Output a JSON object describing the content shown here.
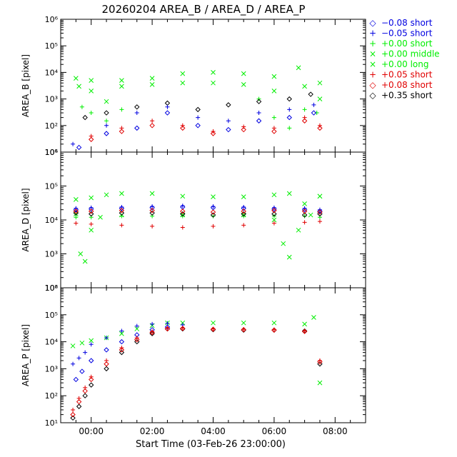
{
  "title": "20260204 AREA_B / AREA_D / AREA_P",
  "colors": {
    "blue": "#0000e0",
    "green": "#00ee00",
    "red": "#e00000",
    "black": "#000000",
    "background": "#ffffff"
  },
  "legend": [
    {
      "symbol": "◇",
      "label": "−0.08 short",
      "color": "#0000e0"
    },
    {
      "symbol": "+",
      "label": "−0.05 short",
      "color": "#0000e0"
    },
    {
      "symbol": "+",
      "label": "+0.00 short",
      "color": "#00ee00"
    },
    {
      "symbol": "×",
      "label": "+0.00 middle",
      "color": "#00ee00"
    },
    {
      "symbol": "×",
      "label": "+0.00 long",
      "color": "#00ee00"
    },
    {
      "symbol": "+",
      "label": "+0.05 short",
      "color": "#e00000"
    },
    {
      "symbol": "◇",
      "label": "+0.08 short",
      "color": "#e00000"
    },
    {
      "symbol": "◇",
      "label": "+0.35 short",
      "color": "#000000"
    }
  ],
  "chart_data": [
    {
      "type": "scatter",
      "panel": "top",
      "ylabel": "AREA_B [pixel]",
      "yscale": "log",
      "ylim": [
        10,
        1000000
      ],
      "y_tick_labels": [
        "10¹",
        "10²",
        "10³",
        "10⁴",
        "10⁵",
        "10⁶"
      ],
      "x_tick_labels": [
        "00:00",
        "02:00",
        "04:00",
        "06:00",
        "08:00"
      ],
      "series": [
        {
          "name": "+0.00 long",
          "color": "#00ee00",
          "marker": "x",
          "x": [
            -0.5,
            0,
            1,
            2,
            3,
            4,
            5,
            6,
            6.8,
            7.5
          ],
          "y": [
            6000,
            5000,
            5000,
            6000,
            9000,
            10000,
            9000,
            7000,
            15000,
            4000
          ]
        },
        {
          "name": "+0.00 middle",
          "color": "#00ee00",
          "marker": "x",
          "x": [
            -0.4,
            0,
            0.5,
            1,
            2,
            3,
            4,
            5,
            6,
            7,
            7.5
          ],
          "y": [
            3000,
            2000,
            800,
            3000,
            3500,
            4000,
            4000,
            3500,
            2000,
            3000,
            1000
          ]
        },
        {
          "name": "+0.00 short",
          "color": "#00ee00",
          "marker": "+",
          "x": [
            -0.3,
            0,
            0.5,
            1,
            5.5,
            6,
            6.5,
            7,
            7.4
          ],
          "y": [
            500,
            300,
            150,
            400,
            1000,
            200,
            80,
            400,
            300
          ]
        },
        {
          "name": "+0.35 short",
          "color": "#000000",
          "marker": "diamond",
          "x": [
            -0.2,
            0.5,
            1.5,
            2.5,
            3.5,
            4.5,
            5.5,
            6.5,
            7.2
          ],
          "y": [
            200,
            300,
            500,
            700,
            400,
            600,
            800,
            1000,
            1500
          ]
        },
        {
          "name": "-0.05 short",
          "color": "#0000e0",
          "marker": "+",
          "x": [
            -0.6,
            0.5,
            1.5,
            2.5,
            3.5,
            4.5,
            5.5,
            6.5,
            7.3
          ],
          "y": [
            20,
            100,
            300,
            500,
            200,
            150,
            300,
            400,
            600
          ]
        },
        {
          "name": "-0.08 short",
          "color": "#0000e0",
          "marker": "diamond",
          "x": [
            -0.4,
            0.5,
            1.5,
            2.5,
            3.5,
            4.5,
            5.5,
            6.5,
            7.3
          ],
          "y": [
            15,
            50,
            80,
            300,
            100,
            70,
            150,
            200,
            300
          ]
        },
        {
          "name": "+0.05 short",
          "color": "#e00000",
          "marker": "+",
          "x": [
            0,
            1,
            2,
            3,
            4,
            5,
            6,
            7,
            7.5
          ],
          "y": [
            40,
            80,
            150,
            100,
            60,
            90,
            80,
            200,
            100
          ]
        },
        {
          "name": "+0.08 short",
          "color": "#e00000",
          "marker": "diamond",
          "x": [
            0,
            1,
            2,
            3,
            4,
            5,
            6,
            7,
            7.5
          ],
          "y": [
            30,
            60,
            100,
            80,
            50,
            70,
            60,
            150,
            80
          ]
        }
      ]
    },
    {
      "type": "scatter",
      "panel": "middle",
      "ylabel": "AREA_D [pixel]",
      "yscale": "log",
      "ylim": [
        100,
        1000000
      ],
      "y_tick_labels": [
        "10²",
        "10³",
        "10⁴",
        "10⁵",
        "10⁶"
      ],
      "x_tick_labels": [
        "00:00",
        "02:00",
        "04:00",
        "06:00",
        "08:00"
      ],
      "series": [
        {
          "name": "+0.00 long",
          "color": "#00ee00",
          "marker": "x",
          "x": [
            -0.5,
            0,
            0.5,
            1,
            2,
            3,
            4,
            5,
            6,
            6.5,
            7,
            7.5
          ],
          "y": [
            40000,
            45000,
            55000,
            60000,
            60000,
            50000,
            48000,
            48000,
            55000,
            60000,
            30000,
            50000
          ]
        },
        {
          "name": "+0.00 middle",
          "color": "#00ee00",
          "marker": "x",
          "x": [
            -0.5,
            -0.35,
            -0.2,
            0,
            0.3,
            1,
            3,
            5,
            6,
            6.3,
            6.5,
            6.8,
            7.2,
            7.5
          ],
          "y": [
            15000,
            1000,
            600,
            5000,
            12000,
            14000,
            14000,
            14000,
            10000,
            2000,
            800,
            5000,
            14000,
            50000
          ]
        },
        {
          "name": "+0.00 short",
          "color": "#00ee00",
          "marker": "+",
          "x": [
            -0.5,
            0,
            1,
            2,
            3,
            4,
            5,
            6,
            7,
            7.5
          ],
          "y": [
            12000,
            12000,
            13000,
            13000,
            13000,
            13000,
            13000,
            13000,
            13000,
            12000
          ]
        },
        {
          "name": "+0.35 short",
          "color": "#000000",
          "marker": "diamond",
          "x": [
            -0.5,
            0,
            1,
            2,
            3,
            4,
            5,
            6,
            7,
            7.5
          ],
          "y": [
            16000,
            15000,
            16000,
            16000,
            15000,
            14000,
            15000,
            15000,
            14000,
            15000
          ]
        },
        {
          "name": "-0.05 short",
          "color": "#0000e0",
          "marker": "+",
          "x": [
            -0.5,
            0,
            1,
            2,
            3,
            4,
            5,
            6,
            7,
            7.5
          ],
          "y": [
            22000,
            23000,
            24000,
            25000,
            26000,
            25000,
            24000,
            23000,
            22000,
            20000
          ]
        },
        {
          "name": "-0.08 short",
          "color": "#0000e0",
          "marker": "diamond",
          "x": [
            -0.5,
            0,
            1,
            2,
            3,
            4,
            5,
            6,
            7,
            7.5
          ],
          "y": [
            20000,
            21000,
            22000,
            23000,
            24000,
            23000,
            22000,
            21000,
            20000,
            18000
          ]
        },
        {
          "name": "+0.05 short",
          "color": "#e00000",
          "marker": "+",
          "x": [
            -0.5,
            0,
            1,
            2,
            3,
            4,
            5,
            6,
            7,
            7.5
          ],
          "y": [
            8000,
            7500,
            7000,
            6500,
            6000,
            6500,
            7000,
            8000,
            8500,
            9000
          ]
        },
        {
          "name": "+0.08 short",
          "color": "#e00000",
          "marker": "diamond",
          "x": [
            -0.5,
            0,
            1,
            2,
            3,
            4,
            5,
            6,
            7,
            7.5
          ],
          "y": [
            18000,
            18000,
            19000,
            19000,
            18000,
            17000,
            18000,
            19000,
            18000,
            17000
          ]
        }
      ]
    },
    {
      "type": "scatter",
      "panel": "bottom",
      "ylabel": "AREA_P [pixel]",
      "xlabel": "Start Time (03-Feb-26 23:00:00)",
      "yscale": "log",
      "ylim": [
        10,
        1000000
      ],
      "y_tick_labels": [
        "10¹",
        "10²",
        "10³",
        "10⁴",
        "10⁵",
        "10⁶"
      ],
      "x_tick_labels": [
        "00:00",
        "02:00",
        "04:00",
        "06:00",
        "08:00"
      ],
      "series": [
        {
          "name": "+0.00 long",
          "color": "#00ee00",
          "marker": "x",
          "x": [
            -0.6,
            -0.3,
            0,
            0.5,
            1,
            1.5,
            2,
            2.5,
            3,
            4,
            5,
            6,
            7,
            7.3,
            7.5
          ],
          "y": [
            7000,
            9000,
            11000,
            14000,
            20000,
            30000,
            40000,
            50000,
            50000,
            50000,
            50000,
            50000,
            45000,
            80000,
            300
          ]
        },
        {
          "name": "-0.05 short",
          "color": "#0000e0",
          "marker": "+",
          "x": [
            -0.6,
            -0.4,
            -0.2,
            0,
            0.5,
            1,
            1.5,
            2,
            2.5,
            3
          ],
          "y": [
            1500,
            2500,
            4000,
            8000,
            14000,
            25000,
            38000,
            45000,
            48000,
            42000
          ]
        },
        {
          "name": "-0.08 short",
          "color": "#0000e0",
          "marker": "diamond",
          "x": [
            -0.5,
            -0.3,
            0,
            0.5,
            1,
            1.5,
            2,
            2.5
          ],
          "y": [
            400,
            800,
            2000,
            5000,
            10000,
            18000,
            28000,
            35000
          ]
        },
        {
          "name": "+0.35 short",
          "color": "#000000",
          "marker": "diamond",
          "x": [
            -0.6,
            -0.4,
            -0.2,
            0,
            0.5,
            1,
            1.5,
            2,
            2.5,
            3,
            4,
            5,
            6,
            7,
            7.5
          ],
          "y": [
            15,
            40,
            100,
            250,
            1000,
            4000,
            10000,
            20000,
            30000,
            30000,
            28000,
            27000,
            27000,
            25000,
            1500
          ]
        },
        {
          "name": "+0.05 short",
          "color": "#e00000",
          "marker": "+",
          "x": [
            -0.6,
            -0.4,
            -0.2,
            0,
            0.5,
            1,
            1.5,
            2,
            2.5,
            3,
            4,
            5,
            6,
            7,
            7.5
          ],
          "y": [
            30,
            80,
            200,
            500,
            2000,
            6000,
            14000,
            24000,
            32000,
            32000,
            30000,
            29000,
            28000,
            25000,
            2000
          ]
        },
        {
          "name": "+0.08 short",
          "color": "#e00000",
          "marker": "diamond",
          "x": [
            -0.6,
            -0.4,
            -0.2,
            0,
            0.5,
            1,
            1.5,
            2,
            2.5,
            3,
            4,
            5,
            6,
            7,
            7.5
          ],
          "y": [
            20,
            60,
            150,
            400,
            1500,
            5000,
            12000,
            22000,
            30000,
            31000,
            29000,
            28000,
            27000,
            24000,
            1800
          ]
        }
      ]
    }
  ]
}
